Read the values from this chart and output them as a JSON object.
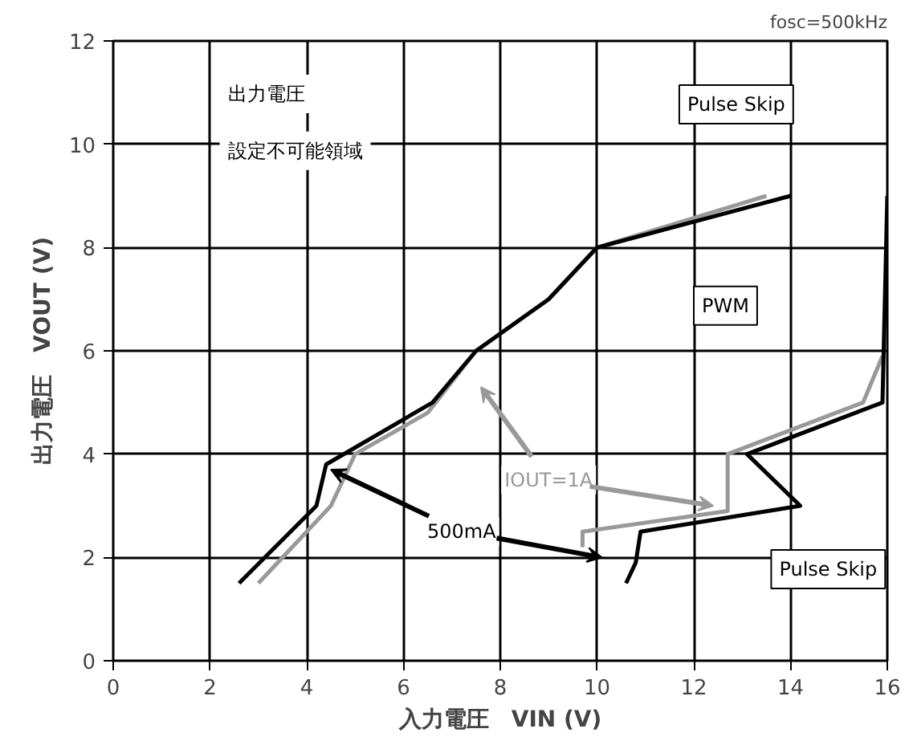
{
  "chart_data": {
    "type": "line",
    "title": "fosc=500kHz",
    "xlabel": "入力電圧　VIN (V)",
    "ylabel": "出力電圧　VOUT (V)",
    "xlim": [
      0,
      16
    ],
    "ylim": [
      0,
      12
    ],
    "xticks": [
      0,
      2,
      4,
      6,
      8,
      10,
      12,
      14,
      16
    ],
    "yticks": [
      0,
      2,
      4,
      6,
      8,
      10,
      12
    ],
    "grid": true,
    "marker": "none",
    "line_style": "solid",
    "series": [
      {
        "name": "IOUT=1A",
        "color": "#999999",
        "x": [
          3.0,
          4.5,
          5.0,
          6.5,
          7.5,
          9.0,
          10.0,
          13.5,
          null,
          15.9,
          15.5,
          12.7,
          12.7,
          9.7,
          9.7
        ],
        "values": [
          1.5,
          3.0,
          4.0,
          4.8,
          6.0,
          7.0,
          8.0,
          9.0,
          null,
          5.9,
          5.0,
          4.0,
          2.9,
          2.5,
          2.2
        ]
      },
      {
        "name": "500mA",
        "color": "#000000",
        "x": [
          2.6,
          4.2,
          4.4,
          6.6,
          7.5,
          9.0,
          10.0,
          14.0,
          null,
          16.0,
          15.9,
          13.1,
          14.2,
          10.9,
          10.8,
          10.6
        ],
        "values": [
          1.5,
          3.0,
          3.8,
          5.0,
          6.0,
          7.0,
          8.0,
          9.0,
          null,
          9.0,
          5.0,
          4.0,
          3.0,
          2.5,
          1.9,
          1.5
        ]
      }
    ],
    "annotations": [
      "出力電圧",
      "設定不可能領域",
      "Pulse Skip",
      "PWM",
      "Pulse Skip"
    ]
  }
}
